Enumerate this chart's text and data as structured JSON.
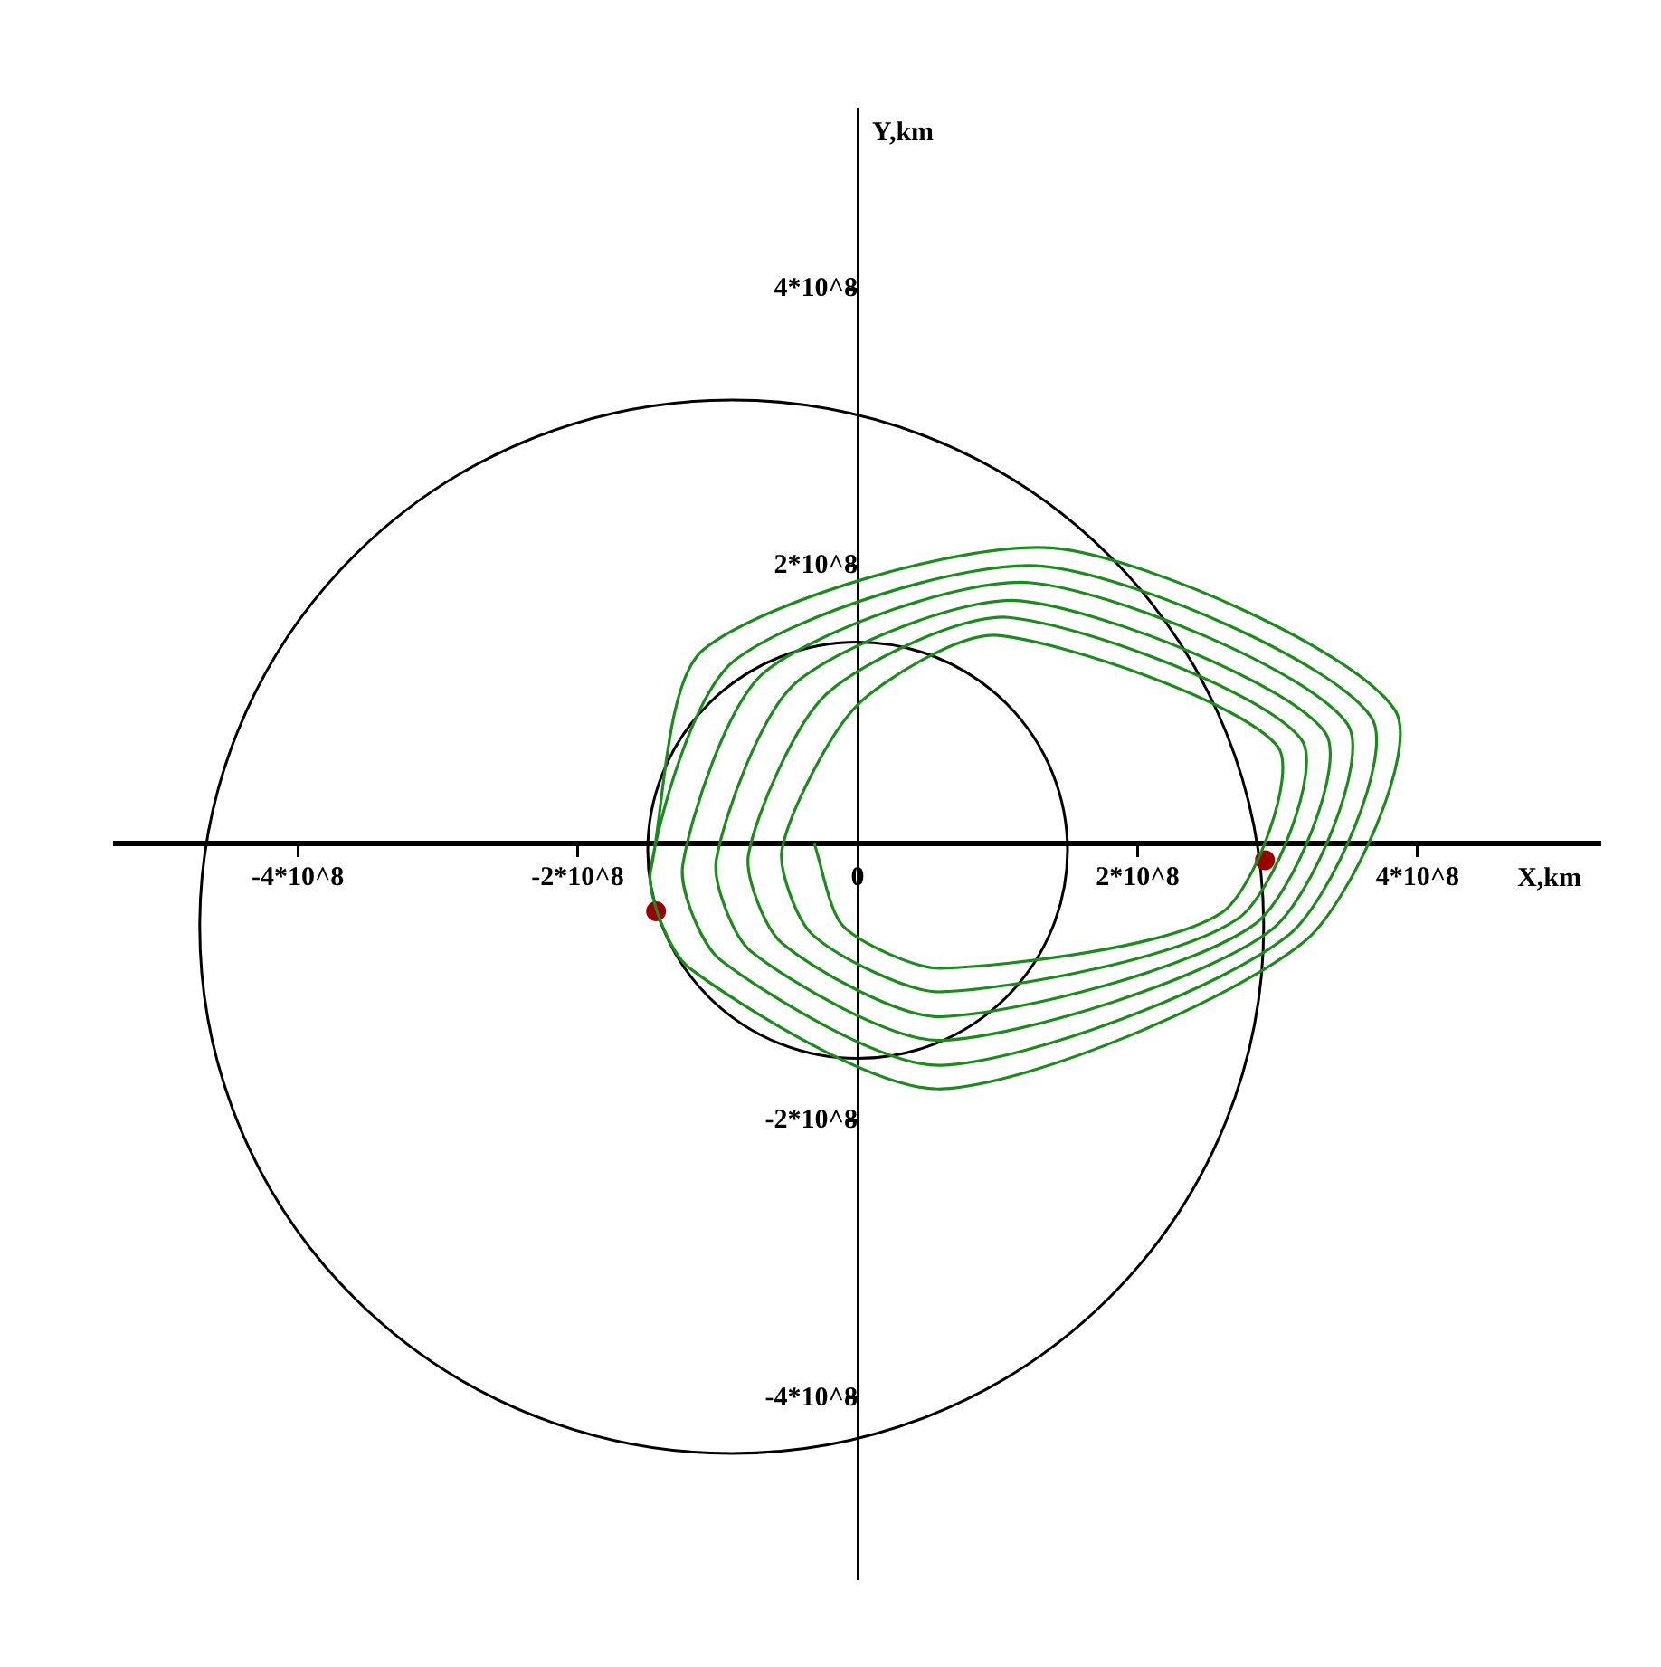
{
  "chart_data": {
    "type": "line",
    "xlabel": "X,km",
    "ylabel": "Y,km",
    "xlim": [
      -530000000.0,
      530000000.0
    ],
    "ylim": [
      -530000000.0,
      530000000.0
    ],
    "xticks": [
      {
        "value": -400000000.0,
        "label": "-4*10^8"
      },
      {
        "value": -200000000.0,
        "label": "-2*10^8"
      },
      {
        "value": 0,
        "label": "0"
      },
      {
        "value": 200000000.0,
        "label": "2*10^8"
      },
      {
        "value": 400000000.0,
        "label": "4*10^8"
      }
    ],
    "yticks": [
      {
        "value": -400000000.0,
        "label": "-4*10^8"
      },
      {
        "value": -200000000.0,
        "label": "-2*10^8"
      },
      {
        "value": 200000000.0,
        "label": "2*10^8"
      },
      {
        "value": 400000000.0,
        "label": "4*10^8"
      }
    ],
    "series": [
      {
        "type": "line",
        "marker": "none",
        "color": "#1a8c1a",
        "x": [
          -31000000.0,
          -10000000.0,
          60000000.0,
          260000000.0,
          300000000.0,
          100000000.0,
          0,
          -54000000.0,
          -32000000.0,
          60000000.0,
          272000000.0,
          317000000.0,
          108000000.0,
          -22000000.0,
          -78000000.0,
          -54000000.0,
          60000000.0,
          284000000.0,
          334000000.0,
          116000000.0,
          -44000000.0,
          -101000000.0,
          -76000000.0,
          60000000.0,
          296000000.0,
          350000000.0,
          124000000.0,
          -66000000.0,
          -125000000.0,
          -98000000.0,
          60000000.0,
          308000000.0,
          367000000.0,
          132000000.0,
          -88000000.0,
          -148000000.0,
          -120000000.0,
          60000000.0,
          320000000.0,
          384000000.0,
          140000000.0,
          -110000000.0,
          -148000000.0
        ],
        "values": [
          0,
          -60000000.0,
          -90000000.0,
          -50000000.0,
          70000000.0,
          150000000.0,
          100000000.0,
          -4000000.0,
          -66000000.0,
          -107000000.0,
          -54000000.0,
          75000000.0,
          163000000.0,
          108000000.0,
          -8000000.0,
          -72000000.0,
          -125000000.0,
          -58000000.0,
          80000000.0,
          175000000.0,
          116000000.0,
          -12000000.0,
          -78000000.0,
          -142000000.0,
          -62000000.0,
          86000000.0,
          188000000.0,
          124000000.0,
          -16000000.0,
          -84000000.0,
          -160000000.0,
          -66000000.0,
          91000000.0,
          200000000.0,
          132000000.0,
          -20000000.0,
          -90000000.0,
          -177000000.0,
          -70000000.0,
          96000000.0,
          213000000.0,
          140000000.0,
          -20000000.0
        ]
      },
      {
        "type": "scatter",
        "marker": "circle",
        "color": "#990000",
        "x": [
          -144000000.0,
          291000000.0
        ],
        "values": [
          -49000000.0,
          -12000000.0
        ]
      }
    ]
  }
}
